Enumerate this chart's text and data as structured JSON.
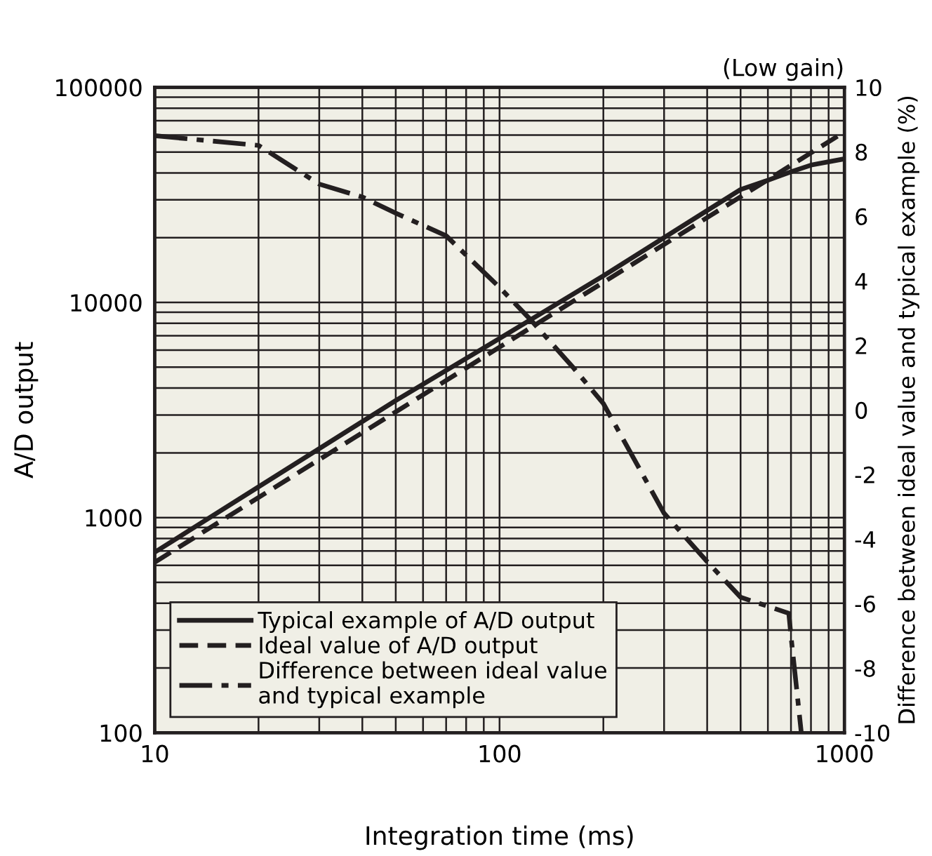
{
  "chart_data": {
    "type": "line",
    "xlabel": "Integration time (ms)",
    "ylabel": "A/D output",
    "y2label": "Difference between ideal value and typical example (%)",
    "annotations": [
      "(Low gain)"
    ],
    "log": "xy",
    "xlim": [
      10,
      1000
    ],
    "xticks": [
      10,
      100,
      1000
    ],
    "ylim": [
      100,
      100000
    ],
    "yticks": [
      100,
      1000,
      10000,
      100000
    ],
    "y2lim": [
      -10,
      10
    ],
    "y2ticks": [
      -10,
      -8,
      -6,
      -4,
      -2,
      0,
      2,
      4,
      6,
      8,
      10
    ],
    "grid": true,
    "legend": "bottom left",
    "marker": "none",
    "series": [
      {
        "name": "Typical example of A/D output",
        "color": "#231f20",
        "line_style": "solid",
        "x": [
          10,
          20,
          50,
          100,
          200,
          500,
          600,
          700,
          800,
          1000
        ],
        "values": [
          690,
          1390,
          3500,
          6800,
          13300,
          33500,
          37000,
          40500,
          43500,
          46500
        ]
      },
      {
        "name": "Ideal value of A/D output",
        "color": "#231f20",
        "line_style": "dashed",
        "x": [
          10,
          100,
          1000
        ],
        "values": [
          620,
          6200,
          62000
        ]
      },
      {
        "name": "Difference between ideal value\nand typical example",
        "color": "#231f20",
        "line_style": "dashdot",
        "axis": "y2",
        "x": [
          10,
          20,
          30,
          40,
          50,
          70,
          80,
          100,
          123,
          164,
          200,
          300,
          400,
          500,
          690,
          700,
          750
        ],
        "values": [
          8.5,
          8.2,
          7.0,
          6.6,
          6.1,
          5.4,
          4.8,
          3.8,
          2.8,
          1.3,
          0.2,
          -3.2,
          -4.7,
          -5.8,
          -6.3,
          -7.0,
          -10
        ]
      }
    ]
  }
}
